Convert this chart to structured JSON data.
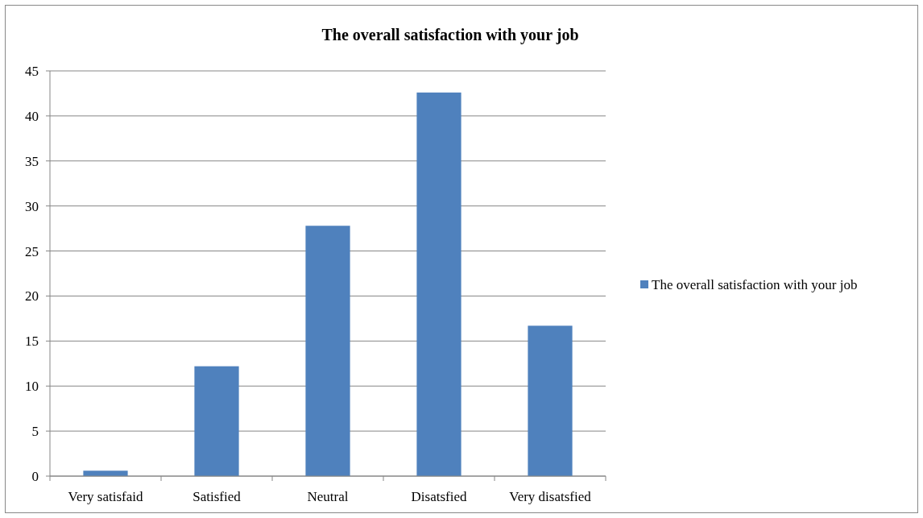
{
  "chart_data": {
    "type": "bar",
    "title": "The overall satisfaction with your job",
    "categories": [
      "Very satisfaid",
      "Satisfied",
      "Neutral",
      "Disatsfied",
      "Very disatsfied"
    ],
    "series": [
      {
        "name": "The overall satisfaction with your job",
        "color": "#4f81bd",
        "values": [
          0.6,
          12.2,
          27.8,
          42.6,
          16.7
        ]
      }
    ],
    "ylim": [
      0,
      45
    ],
    "yticks": [
      0,
      5,
      10,
      15,
      20,
      25,
      30,
      35,
      40,
      45
    ],
    "grid": "y",
    "legend": "right"
  }
}
